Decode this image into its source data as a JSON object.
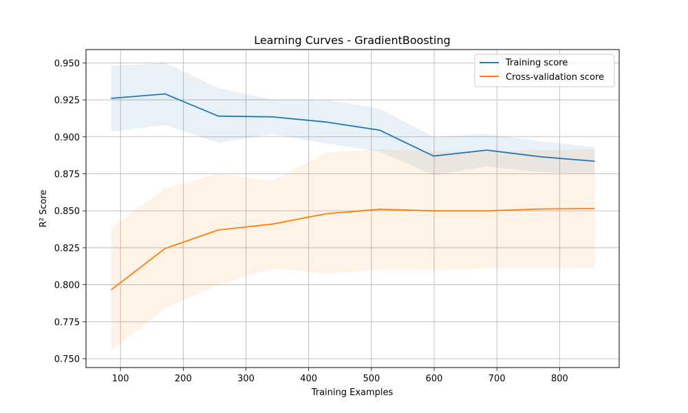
{
  "chart_data": {
    "type": "line",
    "title": "Learning Curves - GradientBoosting",
    "xlabel": "Training Examples",
    "ylabel": "R² Score",
    "xlim": [
      45,
      895
    ],
    "ylim": [
      0.744,
      0.959
    ],
    "x_ticks": [
      100,
      200,
      300,
      400,
      500,
      600,
      700,
      800
    ],
    "y_ticks": [
      0.75,
      0.775,
      0.8,
      0.825,
      0.85,
      0.875,
      0.9,
      0.925,
      0.95
    ],
    "grid": true,
    "legend_position": "top-right",
    "x": [
      85,
      171,
      256,
      342,
      428,
      513,
      599,
      684,
      770,
      856
    ],
    "series": [
      {
        "name": "Training score",
        "color": "#1f77b4",
        "values": [
          0.926,
          0.929,
          0.914,
          0.9135,
          0.91,
          0.9045,
          0.887,
          0.891,
          0.8865,
          0.8835
        ],
        "band_low": [
          0.9035,
          0.908,
          0.896,
          0.902,
          0.8955,
          0.89,
          0.874,
          0.88,
          0.876,
          0.875
        ],
        "band_high": [
          0.948,
          0.95,
          0.933,
          0.925,
          0.925,
          0.919,
          0.9,
          0.902,
          0.897,
          0.893
        ]
      },
      {
        "name": "Cross-validation score",
        "color": "#ff7f0e",
        "values": [
          0.7965,
          0.8245,
          0.837,
          0.841,
          0.848,
          0.851,
          0.85,
          0.85,
          0.8512,
          0.8515
        ],
        "band_low": [
          0.755,
          0.784,
          0.8,
          0.811,
          0.8075,
          0.81,
          0.81,
          0.811,
          0.811,
          0.8115
        ],
        "band_high": [
          0.8385,
          0.865,
          0.875,
          0.87,
          0.8895,
          0.8915,
          0.89,
          0.89,
          0.891,
          0.8915
        ]
      }
    ]
  }
}
